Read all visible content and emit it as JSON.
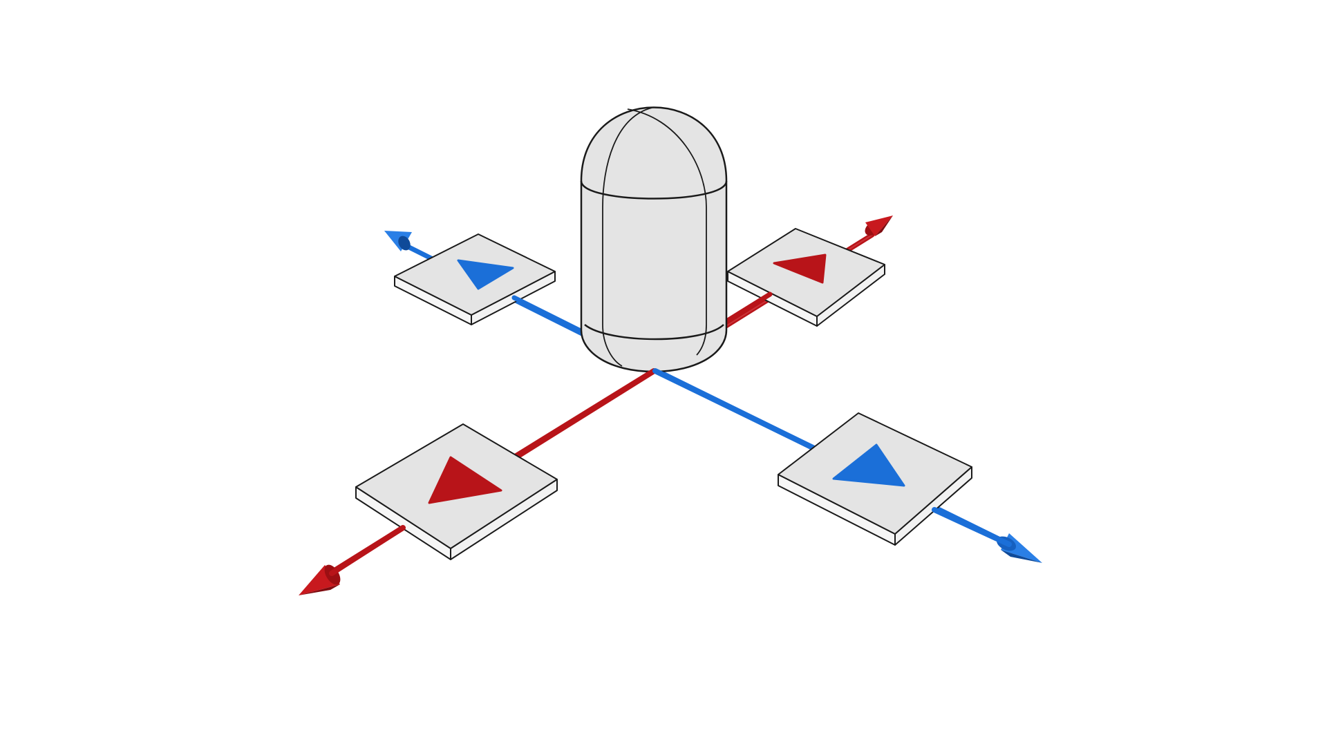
{
  "diagram": {
    "type": "3d-gizmo",
    "background": "#ffffff",
    "colors": {
      "axis_red": "#b81419",
      "axis_red_dark": "#7f0c10",
      "axis_blue": "#1b6fd8",
      "axis_blue_dark": "#0f4a99",
      "body_fill": "#e4e4e4",
      "body_side": "#f6f6f6",
      "outline": "#1a1a1a"
    },
    "capsule": {
      "name": "capsule",
      "icon": "capsule-icon"
    },
    "axes": [
      {
        "name": "red-axis-front-left",
        "color": "red",
        "arrow": "cone"
      },
      {
        "name": "red-axis-back-right",
        "color": "red",
        "arrow": "cone"
      },
      {
        "name": "blue-axis-back-left",
        "color": "blue",
        "arrow": "cone"
      },
      {
        "name": "blue-axis-front-right",
        "color": "blue",
        "arrow": "cone"
      }
    ],
    "handles": [
      {
        "name": "move-handle-back-left",
        "icon": "triangle-arrow-icon",
        "color": "blue"
      },
      {
        "name": "move-handle-back-right",
        "icon": "triangle-arrow-icon",
        "color": "red"
      },
      {
        "name": "move-handle-front-left",
        "icon": "triangle-arrow-icon",
        "color": "red"
      },
      {
        "name": "move-handle-front-right",
        "icon": "triangle-arrow-icon",
        "color": "blue"
      }
    ]
  }
}
